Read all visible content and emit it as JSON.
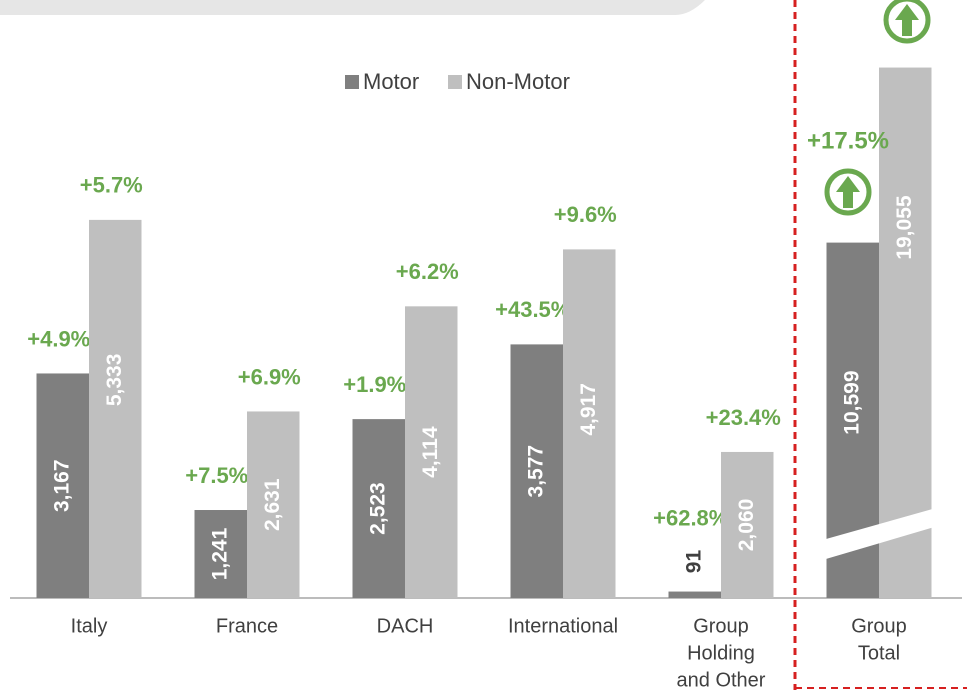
{
  "chart_data": {
    "type": "bar",
    "categories": [
      [
        "Italy"
      ],
      [
        "France"
      ],
      [
        "DACH"
      ],
      [
        "International"
      ],
      [
        "Group",
        "Holding",
        "and Other"
      ],
      [
        "Group",
        "Total"
      ]
    ],
    "series": [
      {
        "name": "Motor",
        "color": "#7f7f7f",
        "values": [
          3167,
          1241,
          2523,
          3577,
          91,
          10599
        ],
        "value_labels": [
          "3,167",
          "1,241",
          "2,523",
          "3,577",
          "91",
          "10,599"
        ],
        "growth_labels": [
          "+4.9%",
          "+7.5%",
          "+1.9%",
          "+43.5%",
          "+62.8%",
          null
        ]
      },
      {
        "name": "Non-Motor",
        "color": "#bfbfbf",
        "values": [
          5333,
          2631,
          4114,
          4917,
          2060,
          19055
        ],
        "value_labels": [
          "5,333",
          "2,631",
          "4,114",
          "4,917",
          "2,060",
          "19,055"
        ],
        "growth_labels": [
          "+5.7%",
          "+6.9%",
          "+6.2%",
          "+9.6%",
          "+23.4%",
          null
        ]
      }
    ],
    "total_growth_label": "+17.5%",
    "broken_categories": [
      5
    ],
    "annotation_color": "#6aa84f"
  }
}
